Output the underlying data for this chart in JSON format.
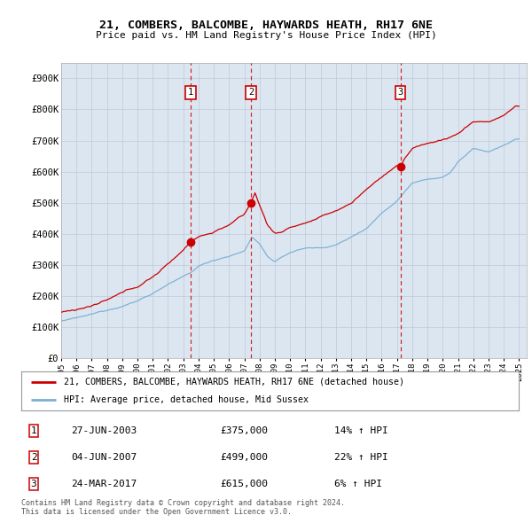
{
  "title": "21, COMBERS, BALCOMBE, HAYWARDS HEATH, RH17 6NE",
  "subtitle": "Price paid vs. HM Land Registry's House Price Index (HPI)",
  "ylim": [
    0,
    950000
  ],
  "yticks": [
    0,
    100000,
    200000,
    300000,
    400000,
    500000,
    600000,
    700000,
    800000,
    900000
  ],
  "ytick_labels": [
    "£0",
    "£100K",
    "£200K",
    "£300K",
    "£400K",
    "£500K",
    "£600K",
    "£700K",
    "£800K",
    "£900K"
  ],
  "xlim_start": 1995.0,
  "xlim_end": 2025.5,
  "transactions": [
    {
      "num": 1,
      "date_num": 2003.49,
      "price": 375000,
      "label": "27-JUN-2003",
      "price_label": "£375,000",
      "pct": "14%",
      "dir": "↑"
    },
    {
      "num": 2,
      "date_num": 2007.43,
      "price": 499000,
      "label": "04-JUN-2007",
      "price_label": "£499,000",
      "pct": "22%",
      "dir": "↑"
    },
    {
      "num": 3,
      "date_num": 2017.23,
      "price": 615000,
      "label": "24-MAR-2017",
      "price_label": "£615,000",
      "pct": "6%",
      "dir": "↑"
    }
  ],
  "legend_property_label": "21, COMBERS, BALCOMBE, HAYWARDS HEATH, RH17 6NE (detached house)",
  "legend_hpi_label": "HPI: Average price, detached house, Mid Sussex",
  "footer1": "Contains HM Land Registry data © Crown copyright and database right 2024.",
  "footer2": "This data is licensed under the Open Government Licence v3.0.",
  "property_color": "#cc0000",
  "hpi_color": "#7bafd4",
  "background_color": "#dce6f1",
  "grid_color": "#c0c8d8",
  "hpi_anchors_t": [
    1995.0,
    1996.0,
    1997.0,
    1998.0,
    1999.0,
    2000.0,
    2001.0,
    2002.0,
    2003.0,
    2003.5,
    2004.0,
    2005.0,
    2006.0,
    2007.0,
    2007.5,
    2008.0,
    2008.5,
    2009.0,
    2009.5,
    2010.0,
    2011.0,
    2012.0,
    2013.0,
    2014.0,
    2015.0,
    2016.0,
    2017.0,
    2017.5,
    2018.0,
    2019.0,
    2020.0,
    2020.5,
    2021.0,
    2022.0,
    2023.0,
    2024.0,
    2024.8
  ],
  "hpi_anchors_v": [
    120000,
    128000,
    138000,
    152000,
    168000,
    185000,
    210000,
    240000,
    262000,
    275000,
    295000,
    315000,
    330000,
    345000,
    390000,
    370000,
    330000,
    310000,
    325000,
    340000,
    355000,
    355000,
    365000,
    390000,
    420000,
    470000,
    510000,
    540000,
    570000,
    585000,
    590000,
    605000,
    640000,
    680000,
    670000,
    690000,
    710000
  ],
  "prop_anchors_t": [
    1995.0,
    1996.0,
    1997.0,
    1998.0,
    1999.0,
    2000.0,
    2001.0,
    2002.0,
    2003.0,
    2003.49,
    2004.0,
    2005.0,
    2006.0,
    2007.0,
    2007.43,
    2007.7,
    2008.0,
    2008.5,
    2009.0,
    2009.5,
    2010.0,
    2011.0,
    2012.0,
    2013.0,
    2014.0,
    2015.0,
    2016.0,
    2017.0,
    2017.23,
    2017.5,
    2018.0,
    2019.0,
    2020.0,
    2021.0,
    2022.0,
    2023.0,
    2024.0,
    2024.8
  ],
  "prop_anchors_v": [
    148000,
    158000,
    170000,
    185000,
    205000,
    225000,
    258000,
    298000,
    345000,
    375000,
    390000,
    405000,
    430000,
    460000,
    499000,
    530000,
    490000,
    430000,
    400000,
    405000,
    420000,
    435000,
    450000,
    470000,
    495000,
    540000,
    580000,
    620000,
    615000,
    640000,
    670000,
    690000,
    700000,
    720000,
    760000,
    760000,
    780000,
    810000
  ]
}
